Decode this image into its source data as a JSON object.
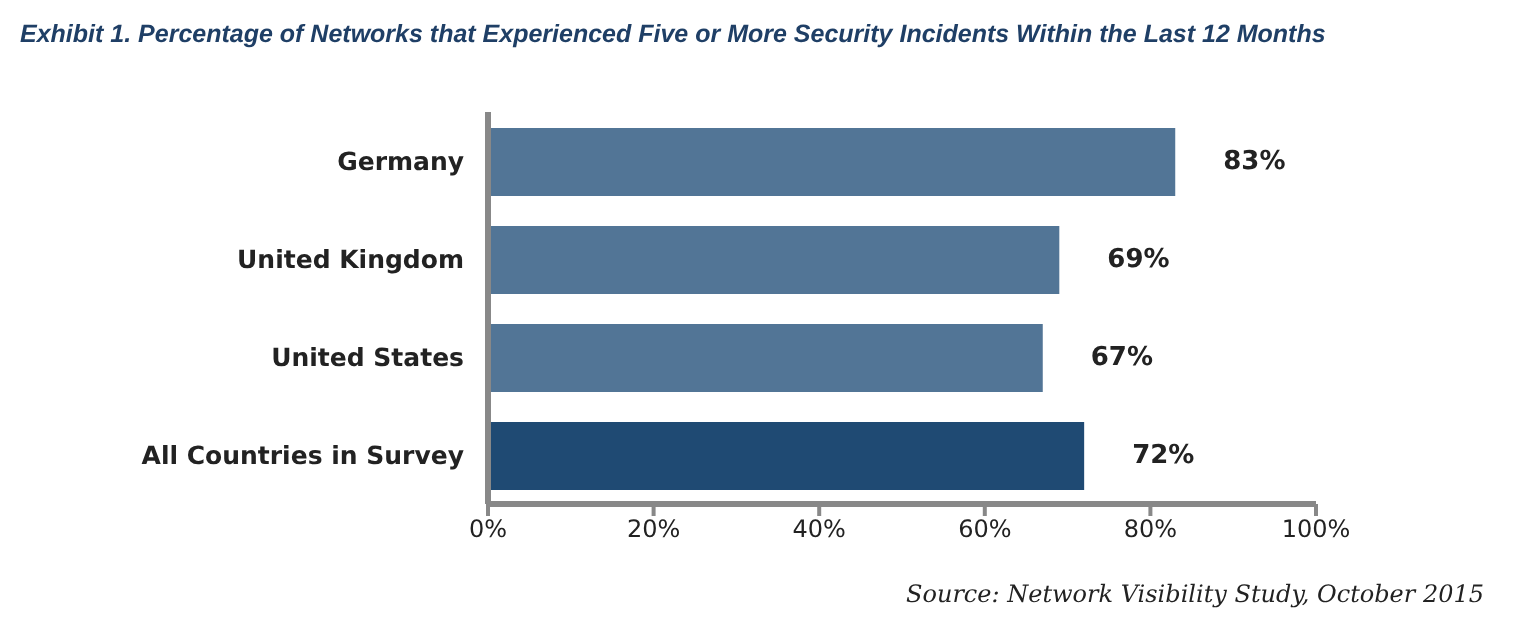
{
  "chart_data": {
    "type": "bar",
    "orientation": "horizontal",
    "title": "Exhibit 1. Percentage of Networks that Experienced Five or More Security Incidents Within the Last 12 Months",
    "categories": [
      "Germany",
      "United Kingdom",
      "United States",
      "All Countries in Survey"
    ],
    "values": [
      83,
      69,
      67,
      72
    ],
    "value_labels": [
      "83%",
      "69%",
      "67%",
      "72%"
    ],
    "colors": [
      "#527596",
      "#527596",
      "#527596",
      "#1f4a73"
    ],
    "xlim": [
      0,
      100
    ],
    "xticks": [
      {
        "value": 0,
        "label": "0%"
      },
      {
        "value": 20,
        "label": "20%"
      },
      {
        "value": 40,
        "label": "40%"
      },
      {
        "value": 60,
        "label": "60%"
      },
      {
        "value": 80,
        "label": "80%"
      },
      {
        "value": 100,
        "label": "100%"
      }
    ],
    "grid": false,
    "annotations": [
      "Source: Network Visibility Study, October 2015"
    ]
  }
}
